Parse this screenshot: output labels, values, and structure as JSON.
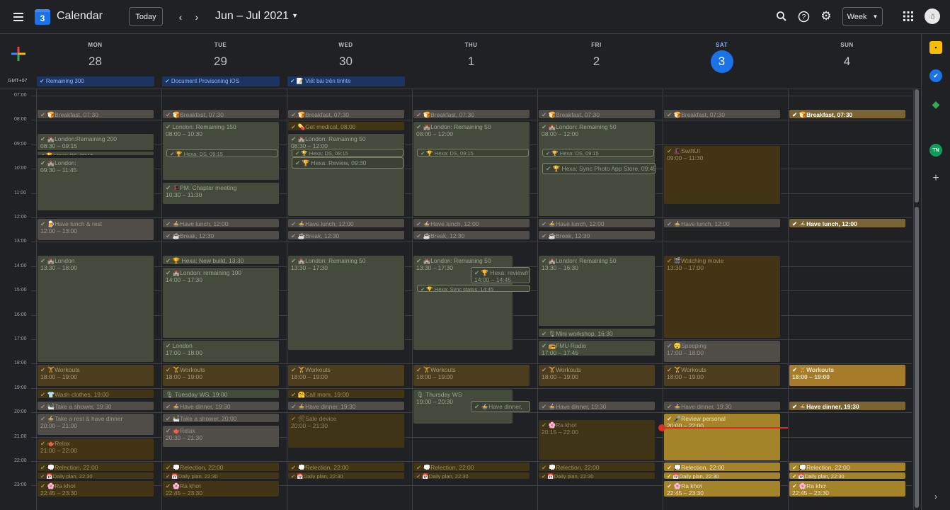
{
  "header": {
    "app_title": "Calendar",
    "logo_day": "3",
    "today_label": "Today",
    "prev": "‹",
    "next": "›",
    "date_range": "Jun – Jul 2021",
    "view_label": "Week",
    "avatar_initial": "☃"
  },
  "timezone": "GMT+07",
  "days": [
    {
      "dow": "MON",
      "num": "28"
    },
    {
      "dow": "TUE",
      "num": "29"
    },
    {
      "dow": "WED",
      "num": "30"
    },
    {
      "dow": "THU",
      "num": "1"
    },
    {
      "dow": "FRI",
      "num": "2"
    },
    {
      "dow": "SAT",
      "num": "3",
      "today": true
    },
    {
      "dow": "SUN",
      "num": "4"
    }
  ],
  "hours": [
    "07:00",
    "08:00",
    "09:00",
    "10:00",
    "11:00",
    "12:00",
    "13:00",
    "14:00",
    "15:00",
    "16:00",
    "17:00",
    "18:00",
    "19:00",
    "20:00",
    "21:00",
    "22:00",
    "23:00"
  ],
  "all_day": [
    {
      "day": 0,
      "title": "✔ Remaining 300"
    },
    {
      "day": 1,
      "title": "✔ Document Provisoning iOS"
    },
    {
      "day": 2,
      "title": "✔ 📝 Viết bài trên tinhte"
    }
  ],
  "events": [
    {
      "day": 0,
      "title": "✔ 🍞Breakfast, 07:30",
      "cls": "g1"
    },
    {
      "day": 1,
      "title": "✔ 🍞Breakfast, 07:30",
      "cls": "g1"
    },
    {
      "day": 2,
      "title": "✔ 🍞Breakfast, 07:30",
      "cls": "g1"
    },
    {
      "day": 3,
      "title": "✔ 🍞Breakfast, 07:30",
      "cls": "g1"
    },
    {
      "day": 4,
      "title": "✔ 🍞Breakfast, 07:30",
      "cls": "g1"
    },
    {
      "day": 5,
      "title": "✔ 🍞Breakfast, 07:30",
      "cls": "g1"
    },
    {
      "day": 6,
      "title": "✔ 🍞Breakfast, 07:30",
      "cls": "bright"
    },
    {
      "day": 0,
      "title": "✔ 🏰London:Remaining 200",
      "sub": "08:30 – 09:15",
      "cls": "gr"
    },
    {
      "day": 0,
      "title": "✔ 🏆 Hexa: DS, 09:15",
      "cls": "gr"
    },
    {
      "day": 0,
      "title": "✔ 🏰London:",
      "sub": "09:30 – 11:45",
      "cls": "gr"
    },
    {
      "day": 1,
      "title": "✔ London: Remaining 150",
      "sub": "08:00 – 10:30",
      "cls": "gr"
    },
    {
      "day": 1,
      "title": "✔ 🏆 Hexa: DS, 09:15",
      "cls": "gr2"
    },
    {
      "day": 1,
      "title": "✔ 🎩PM: Chapter meeting",
      "sub": "10:30 – 11:30",
      "cls": "gr"
    },
    {
      "day": 2,
      "title": "✔ 💊Get medical, 08:00",
      "cls": "o3"
    },
    {
      "day": 2,
      "title": "✔ 🏰London: Remaining 50",
      "sub": "08:30 – 12:00",
      "cls": "gr"
    },
    {
      "day": 2,
      "title": "✔ 🏆 Hexa: DS, 09:15",
      "cls": "gr2"
    },
    {
      "day": 2,
      "title": "✔ 🏆 Hexa: Review, 09:30",
      "cls": "gr2"
    },
    {
      "day": 3,
      "title": "✔ 🏰London: Remaining 50",
      "sub": "08:00 – 12:00",
      "cls": "gr"
    },
    {
      "day": 3,
      "title": "✔ 🏆 Hexa: DS, 09:15",
      "cls": "gr2"
    },
    {
      "day": 4,
      "title": "✔ 🏰London: Remaining 50",
      "sub": "08:00 – 12:00",
      "cls": "gr"
    },
    {
      "day": 4,
      "title": "✔ 🏆 Hexa: DS, 09:15",
      "cls": "gr2"
    },
    {
      "day": 4,
      "title": "✔ 🏆 Hexa: Sync Photo App Store, 09:45",
      "cls": "gr2"
    },
    {
      "day": 5,
      "title": "✔ 🎩SwiftUI",
      "sub": "09:00 – 11:30",
      "cls": "o3"
    },
    {
      "day": 0,
      "title": "✔ 🍺Have lunch & rest",
      "sub": "12:00 – 13:00",
      "cls": "g1"
    },
    {
      "day": 1,
      "title": "✔ 🍲Have lunch, 12:00",
      "cls": "g1"
    },
    {
      "day": 1,
      "title": "✔ ☕Break, 12:30",
      "cls": "g1"
    },
    {
      "day": 2,
      "title": "✔ 🍲Have lunch, 12:00",
      "cls": "g1"
    },
    {
      "day": 2,
      "title": "✔ ☕Break, 12:30",
      "cls": "g1"
    },
    {
      "day": 3,
      "title": "✔ 🍲Have lunch, 12:00",
      "cls": "g1"
    },
    {
      "day": 3,
      "title": "✔ ☕Break, 12:30",
      "cls": "g1"
    },
    {
      "day": 4,
      "title": "✔ 🍲Have lunch, 12:00",
      "cls": "g1"
    },
    {
      "day": 4,
      "title": "✔ ☕Break, 12:30",
      "cls": "g1"
    },
    {
      "day": 5,
      "title": "✔ 🍲Have lunch, 12:00",
      "cls": "g1"
    },
    {
      "day": 6,
      "title": "✔ 🍲Have lunch, 12:00",
      "cls": "bright"
    },
    {
      "day": 0,
      "title": "✔ 🏰London",
      "sub": "13:30 – 18:00",
      "cls": "gr"
    },
    {
      "day": 1,
      "title": "✔ 🏆 Hexa: New build, 13:30",
      "cls": "gr"
    },
    {
      "day": 1,
      "title": "✔ 🏰London: remaining 100",
      "sub": "14:00 – 17:30",
      "cls": "gr"
    },
    {
      "day": 1,
      "title": "✔ London",
      "sub": "17:00 – 18:00",
      "cls": "gr"
    },
    {
      "day": 2,
      "title": "✔ 🏰London: Remaining 50",
      "sub": "13:30 – 17:30",
      "cls": "gr"
    },
    {
      "day": 3,
      "title": "✔ 🏰London: Remaining 50",
      "sub": "13:30 – 17:30",
      "cls": "gr"
    },
    {
      "day": 3,
      "title": "✔ 🏆 Hexa: review/r",
      "sub": "14:00 – 14:45",
      "cls": "gr2"
    },
    {
      "day": 3,
      "title": "✔ 🏆 Hexa: Sync status, 14:45",
      "cls": "gr2"
    },
    {
      "day": 4,
      "title": "✔ 🏰London: Remaining 50",
      "sub": "13:30 – 16:30",
      "cls": "gr"
    },
    {
      "day": 4,
      "title": "✔ 🎙Mini workshop, 16:30",
      "cls": "gr"
    },
    {
      "day": 4,
      "title": "✔ 📻FMU Radio",
      "sub": "17:00 – 17:45",
      "cls": "gr"
    },
    {
      "day": 5,
      "title": "✔ 🎬Watching movie",
      "sub": "13:30 – 17:00",
      "cls": "o3"
    },
    {
      "day": 5,
      "title": "✔ 😴Speeping",
      "sub": "17:00 – 18:00",
      "cls": "g1"
    },
    {
      "day": 0,
      "title": "✔ 🏋Workouts",
      "sub": "18:00 – 19:00",
      "cls": "o1"
    },
    {
      "day": 1,
      "title": "✔ 🏋Workouts",
      "sub": "18:00 – 19:00",
      "cls": "o1"
    },
    {
      "day": 2,
      "title": "✔ 🏋Workouts",
      "sub": "18:00 – 19:00",
      "cls": "o1"
    },
    {
      "day": 3,
      "title": "✔ 🏋Workouts",
      "sub": "18:00 – 19:00",
      "cls": "o1"
    },
    {
      "day": 4,
      "title": "✔ 🏋Workouts",
      "sub": "18:00 – 19:00",
      "cls": "o1"
    },
    {
      "day": 5,
      "title": "✔ 🏋Workouts",
      "sub": "18:00 – 19:00",
      "cls": "o1"
    },
    {
      "day": 6,
      "title": "✔ 🏋Workouts",
      "sub": "18:00 – 19:00",
      "cls": "o2"
    },
    {
      "day": 0,
      "title": "✔ 👕Wash clothes, 19:00",
      "cls": "o3"
    },
    {
      "day": 0,
      "title": "✔ 🛀Take a shower, 19:30",
      "cls": "g1"
    },
    {
      "day": 0,
      "title": "✔ 🍲Take a rest & have dinner",
      "sub": "20:00 – 21:00",
      "cls": "g1"
    },
    {
      "day": 0,
      "title": "✔ 🫖Relax",
      "sub": "21:00 – 22:00",
      "cls": "o3"
    },
    {
      "day": 1,
      "title": "🎙 Tuesday WS, 19:00",
      "cls": "gr"
    },
    {
      "day": 1,
      "title": "✔ 🍲Have dinner, 19:30",
      "cls": "g1"
    },
    {
      "day": 1,
      "title": "✔ 🛀Take a shower, 20:00",
      "cls": "g1"
    },
    {
      "day": 1,
      "title": "✔ 🫖Relax",
      "sub": "20:30 – 21:30",
      "cls": "g1"
    },
    {
      "day": 2,
      "title": "✔ 🤗Call mom, 19:00",
      "cls": "o3"
    },
    {
      "day": 2,
      "title": "✔ 🍲Have dinner, 19:30",
      "cls": "g1"
    },
    {
      "day": 2,
      "title": "✔ 🛠Sale device",
      "sub": "20:00 – 21:30",
      "cls": "o5"
    },
    {
      "day": 3,
      "title": "🎙 Thursday WS",
      "sub": "19:00 – 20:30",
      "cls": "gr"
    },
    {
      "day": 3,
      "title": "✔ 🍲Have dinner,",
      "cls": "gr2"
    },
    {
      "day": 4,
      "title": "✔ 🍲Have dinner, 19:30",
      "cls": "g1"
    },
    {
      "day": 4,
      "title": "✔ 🌸Ra khơi",
      "sub": "20:15 – 22:00",
      "cls": "o5"
    },
    {
      "day": 5,
      "title": "✔ 🍲Have dinner, 19:30",
      "cls": "g1"
    },
    {
      "day": 5,
      "title": "✔ 🎤Review personal",
      "sub": "20:00 – 22:00",
      "cls": "o4"
    },
    {
      "day": 6,
      "title": "✔ 🍲Have dinner, 19:30",
      "cls": "bright"
    },
    {
      "day": 0,
      "title": "✔ 💭Relection, 22:00",
      "cls": "o3"
    },
    {
      "day": 0,
      "title": "✔ 📅Daily plan, 22:30",
      "cls": "o3"
    },
    {
      "day": 0,
      "title": "✔ 🌸Ra khơi",
      "sub": "22:45 – 23:30",
      "cls": "o3"
    },
    {
      "day": 1,
      "title": "✔ 💭Relection, 22:00",
      "cls": "o3"
    },
    {
      "day": 1,
      "title": "✔ 📅Daily plan, 22:30",
      "cls": "o3"
    },
    {
      "day": 1,
      "title": "✔ 🌸Ra khơi",
      "sub": "22:45 – 23:30",
      "cls": "o3"
    },
    {
      "day": 2,
      "title": "✔ 💭Relection, 22:00",
      "cls": "o3"
    },
    {
      "day": 2,
      "title": "✔ 📅Daily plan, 22:30",
      "cls": "o3"
    },
    {
      "day": 3,
      "title": "✔ 💭Relection, 22:00",
      "cls": "o3"
    },
    {
      "day": 3,
      "title": "✔ 📅Daily plan, 22:30",
      "cls": "o3"
    },
    {
      "day": 4,
      "title": "✔ 💭Relection, 22:00",
      "cls": "o3"
    },
    {
      "day": 4,
      "title": "✔ 📅Daily plan, 22:30",
      "cls": "o3"
    },
    {
      "day": 5,
      "title": "✔ 💭Relection, 22:00",
      "cls": "o4"
    },
    {
      "day": 5,
      "title": "✔ 📅Daily plan, 22:30",
      "cls": "o4"
    },
    {
      "day": 5,
      "title": "✔ 🌸Ra khơi",
      "sub": "22:45 – 23:30",
      "cls": "o4"
    },
    {
      "day": 6,
      "title": "✔ 💭Relection, 22:00",
      "cls": "o4"
    },
    {
      "day": 6,
      "title": "✔ 📅Daily plan, 22:30",
      "cls": "o4"
    },
    {
      "day": 6,
      "title": "✔ 🌸Ra khơ",
      "sub": "22:45 – 23:30",
      "cls": "o4"
    }
  ],
  "side_panel": {
    "keep": "▪",
    "tasks": "✔",
    "maps": "◆",
    "contact_initials": "TN",
    "add": "+",
    "expand": "›"
  },
  "colors": {
    "accent": "#1a73e8",
    "now_line": "#d93025"
  }
}
